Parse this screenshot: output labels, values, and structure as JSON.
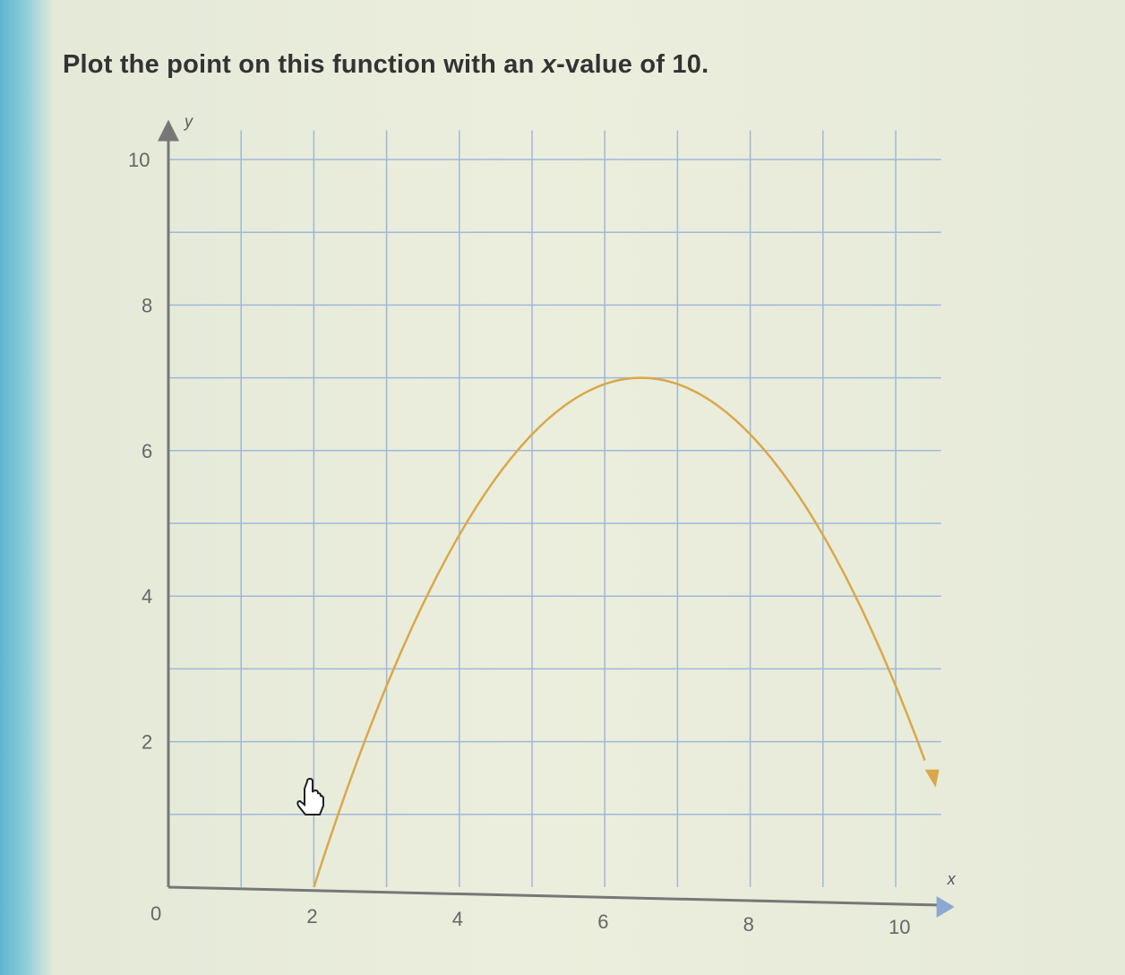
{
  "question": {
    "prefix": "Plot the point on this function with an ",
    "var": "x",
    "suffix": "-value of 10."
  },
  "chart_data": {
    "type": "line",
    "title": "",
    "xlabel": "x",
    "ylabel": "y",
    "xlim": [
      0,
      10.5
    ],
    "ylim": [
      0,
      10.4
    ],
    "xticks": [
      0,
      2,
      4,
      6,
      8,
      10
    ],
    "yticks": [
      2,
      4,
      6,
      8,
      10
    ],
    "tick_labels_x": [
      "0",
      "2",
      "4",
      "6",
      "8",
      "10"
    ],
    "tick_labels_y": [
      "2",
      "4",
      "6",
      "8",
      "10"
    ],
    "grid": true,
    "grid_step": 1,
    "curve": {
      "form": "parabola",
      "vertex": [
        6.5,
        7
      ],
      "points": [
        [
          2,
          0
        ],
        [
          3,
          2.76
        ],
        [
          4,
          4.84
        ],
        [
          5,
          6.22
        ],
        [
          6,
          6.91
        ],
        [
          6.5,
          7
        ],
        [
          7,
          6.91
        ],
        [
          8,
          6.22
        ],
        [
          9,
          4.84
        ],
        [
          10,
          2.76
        ],
        [
          10.5,
          1.47
        ]
      ],
      "end_arrow": true,
      "color": "#d9a84a"
    },
    "colors": {
      "grid": "#9fb8d8",
      "axis": "#777777",
      "curve": "#d9a84a"
    }
  },
  "cursor": "hand-pointer-icon"
}
